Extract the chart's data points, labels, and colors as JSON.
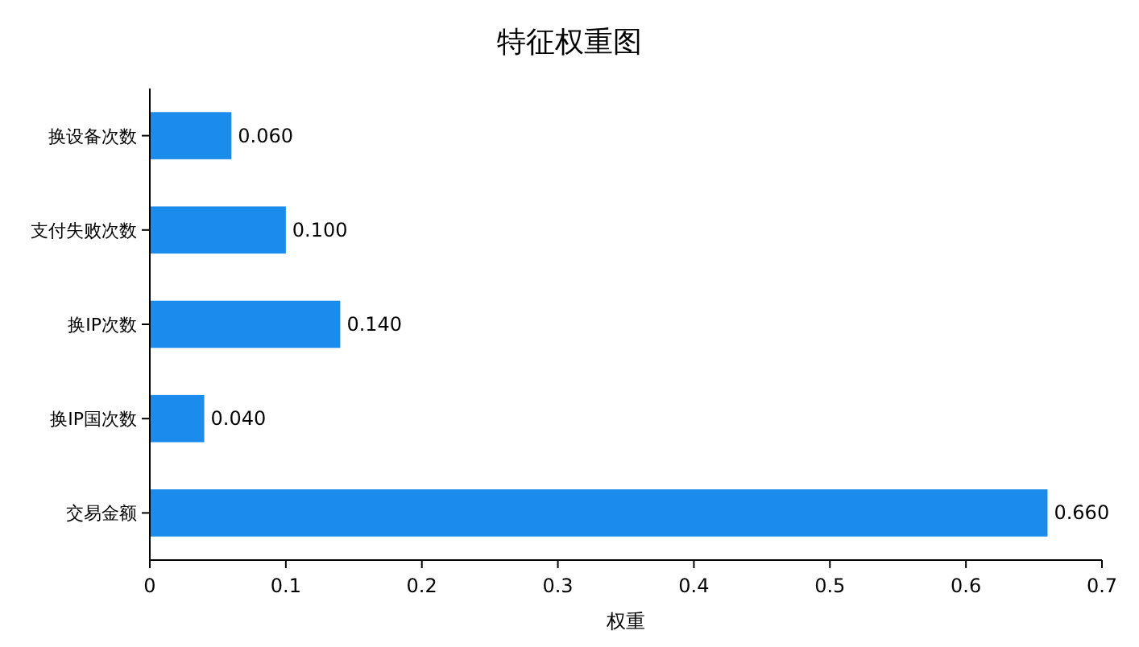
{
  "chart_data": {
    "type": "bar",
    "orientation": "horizontal",
    "title": "特征权重图",
    "xlabel": "权重",
    "categories": [
      "换设备次数",
      "支付失败次数",
      "换IP次数",
      "换IP国次数",
      "交易金额"
    ],
    "values": [
      0.06,
      0.1,
      0.14,
      0.04,
      0.66
    ],
    "value_labels": [
      "0.060",
      "0.100",
      "0.140",
      "0.040",
      "0.660"
    ],
    "color": "#1b8ceb",
    "xlim": [
      0,
      0.7
    ],
    "xticks": [
      0,
      0.1,
      0.2,
      0.3,
      0.4,
      0.5,
      0.6,
      0.7
    ]
  }
}
